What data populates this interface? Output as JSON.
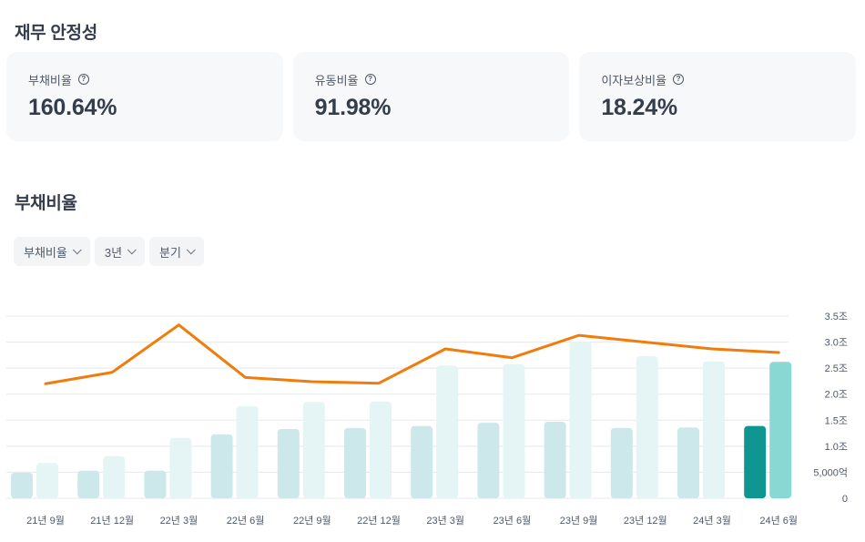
{
  "sections": {
    "financial_stability_title": "재무 안정성",
    "chart_title": "부채비율"
  },
  "metrics": [
    {
      "label": "부채비율",
      "value": "160.64%",
      "icon": "help-icon"
    },
    {
      "label": "유동비율",
      "value": "91.98%",
      "icon": "help-icon"
    },
    {
      "label": "이자보상비율",
      "value": "18.24%",
      "icon": "help-icon"
    }
  ],
  "filters": [
    {
      "label": "부채비율",
      "icon": "chevron-down-icon"
    },
    {
      "label": "3년",
      "icon": "chevron-down-icon"
    },
    {
      "label": "분기",
      "icon": "chevron-down-icon"
    }
  ],
  "colors": {
    "bar_a": "#cde8ea",
    "bar_b": "#e5f5f5",
    "bar_a_latest": "#0f9690",
    "bar_b_latest": "#89d8d4",
    "line": "#f07c0b",
    "grid": "#e5e8eb"
  },
  "chart_data": {
    "type": "bar",
    "categories": [
      "21년 9월",
      "21년 12월",
      "22년 3월",
      "22년 6월",
      "22년 9월",
      "22년 12월",
      "23년 3월",
      "23년 6월",
      "23년 9월",
      "23년 12월",
      "24년 3월",
      "24년 6월"
    ],
    "y_tick_labels": [
      "0",
      "5,000억",
      "1.0조",
      "1.5조",
      "2.0조",
      "2.5조",
      "3.0조",
      "3.5조"
    ],
    "ylim": [
      0,
      3.5
    ],
    "y_unit": "조",
    "series": [
      {
        "type": "bar",
        "values": [
          0.49,
          0.53,
          0.53,
          1.23,
          1.33,
          1.35,
          1.39,
          1.45,
          1.47,
          1.35,
          1.36,
          1.39
        ]
      },
      {
        "type": "bar",
        "values": [
          0.68,
          0.81,
          1.16,
          1.77,
          1.85,
          1.86,
          2.55,
          2.58,
          3.01,
          2.73,
          2.63,
          2.62
        ]
      },
      {
        "type": "line",
        "values": [
          2.2,
          2.42,
          3.33,
          2.32,
          2.24,
          2.21,
          2.87,
          2.7,
          3.13,
          3.0,
          2.87,
          2.8
        ]
      }
    ],
    "grid": true,
    "legend": "none"
  }
}
